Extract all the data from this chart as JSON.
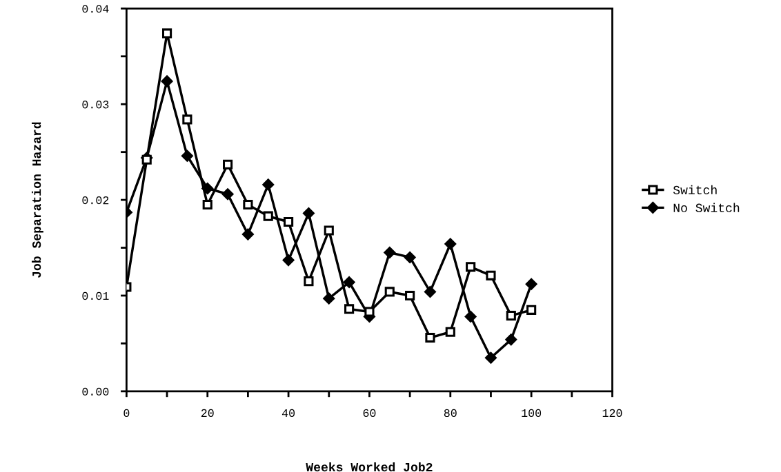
{
  "chart_data": {
    "type": "line",
    "xlabel": "Weeks Worked Job2",
    "ylabel": "Job Separation Hazard",
    "x": [
      0,
      5,
      10,
      15,
      20,
      25,
      30,
      35,
      40,
      45,
      50,
      55,
      60,
      65,
      70,
      75,
      80,
      85,
      90,
      95,
      100
    ],
    "series": [
      {
        "name": "Switch",
        "color": "#000000",
        "marker": "square",
        "values": [
          0.0109,
          0.0242,
          0.0374,
          0.0284,
          0.0195,
          0.0237,
          0.0195,
          0.0183,
          0.0177,
          0.0115,
          0.0168,
          0.0086,
          0.0083,
          0.0104,
          0.01,
          0.0056,
          0.0062,
          0.013,
          0.0121,
          0.0079,
          0.0085
        ]
      },
      {
        "name": "No Switch",
        "color": "#000000",
        "marker": "diamond",
        "values": [
          0.0187,
          0.0244,
          0.0324,
          0.0246,
          0.0212,
          0.0206,
          0.0164,
          0.0216,
          0.0137,
          0.0186,
          0.0097,
          0.0114,
          0.0078,
          0.0145,
          0.014,
          0.0104,
          0.0154,
          0.0078,
          0.0035,
          0.0054,
          0.0112
        ]
      }
    ],
    "xlim": [
      0,
      120
    ],
    "ylim": [
      0,
      0.04
    ],
    "xticks": [
      0,
      {
        "value": 10,
        "label": null
      },
      20,
      {
        "value": 30,
        "label": null
      },
      40,
      {
        "value": 50,
        "label": null
      },
      60,
      {
        "value": 70,
        "label": null
      },
      80,
      {
        "value": 90,
        "label": null
      },
      100,
      {
        "value": 110,
        "label": null
      },
      120
    ],
    "yticks": [
      {
        "value": 0,
        "label": "0.00"
      },
      {
        "value": 0.005,
        "label": null
      },
      {
        "value": 0.01,
        "label": "0.01"
      },
      {
        "value": 0.015,
        "label": null
      },
      {
        "value": 0.02,
        "label": "0.02"
      },
      {
        "value": 0.025,
        "label": null
      },
      {
        "value": 0.03,
        "label": "0.03"
      },
      {
        "value": 0.035,
        "label": null
      },
      {
        "value": 0.04,
        "label": "0.04"
      }
    ],
    "legend": "right",
    "grid": false,
    "line_style": "solid"
  }
}
